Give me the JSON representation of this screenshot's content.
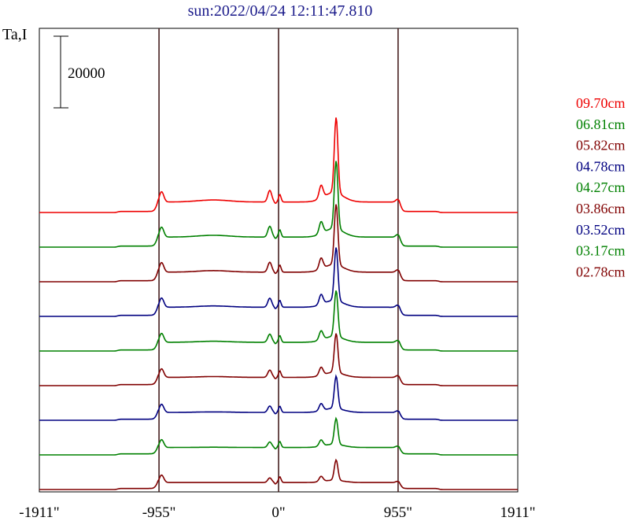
{
  "chart_data": {
    "type": "line",
    "title": "sun:2022/04/24 12:11:47.810",
    "ylabel": "Ta,I",
    "scale_bar_label": "20000",
    "scale_bar_value": 20000,
    "x_ticks": [
      {
        "value": -1911,
        "label": "-1911\""
      },
      {
        "value": -955,
        "label": "-955\""
      },
      {
        "value": 0,
        "label": "0\""
      },
      {
        "value": 955,
        "label": "955\""
      },
      {
        "value": 1911,
        "label": "1911\""
      }
    ],
    "xlim": [
      -1911,
      1911
    ],
    "vertical_lines_at": [
      -955,
      0,
      955
    ],
    "grid": false,
    "legend_position": "right",
    "series": [
      {
        "name": "09.70cm",
        "color": "#ee0000"
      },
      {
        "name": "06.81cm",
        "color": "#008000"
      },
      {
        "name": "05.82cm",
        "color": "#800000"
      },
      {
        "name": "04.78cm",
        "color": "#000080"
      },
      {
        "name": "04.27cm",
        "color": "#008000"
      },
      {
        "name": "03.86cm",
        "color": "#800000"
      },
      {
        "name": "03.52cm",
        "color": "#000080"
      },
      {
        "name": "03.17cm",
        "color": "#008000"
      },
      {
        "name": "02.78cm",
        "color": "#800000"
      }
    ]
  }
}
